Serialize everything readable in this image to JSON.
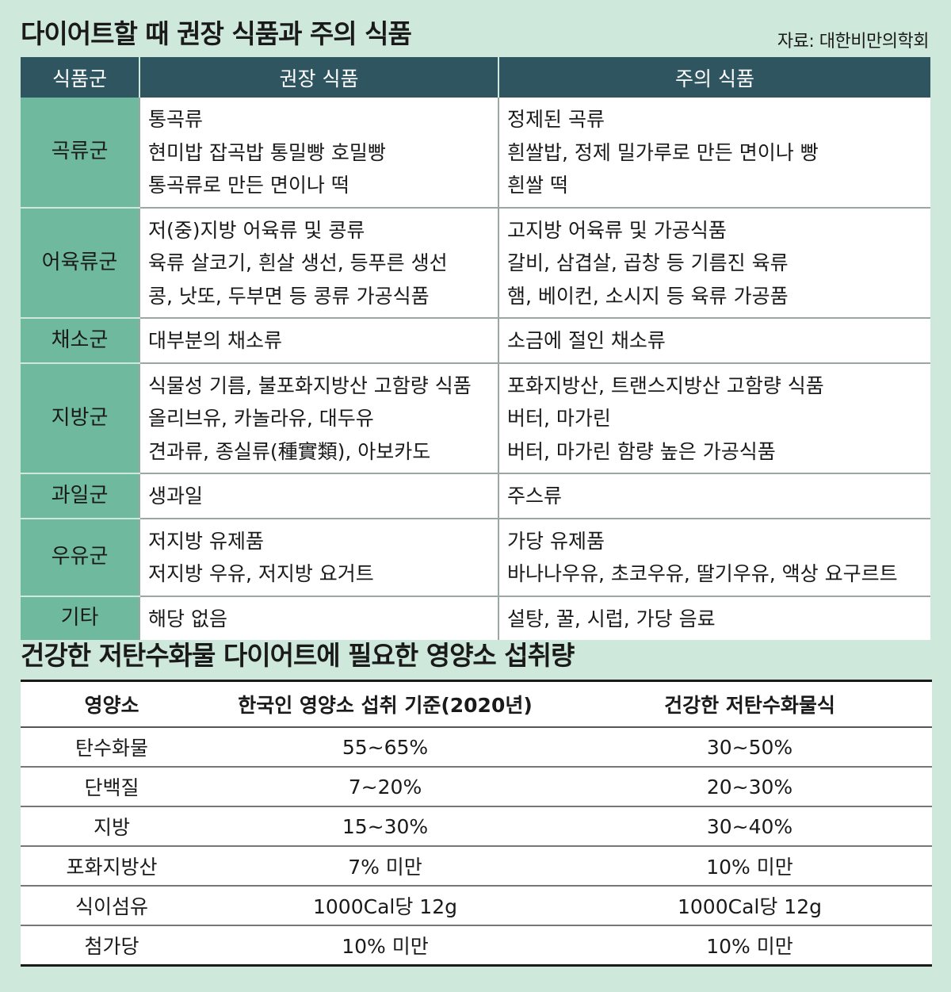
{
  "title1": "다이어트할 때 권장 식품과 주의 식품",
  "source": "자료: 대한비만의학회",
  "foods": {
    "headers": [
      "식품군",
      "권장 식품",
      "주의 식품"
    ],
    "rows": [
      {
        "group": "곡류군",
        "recommended": [
          "통곡류",
          "현미밥 잡곡밥 통밀빵 호밀빵",
          "통곡류로 만든 면이나 떡"
        ],
        "caution": [
          "정제된 곡류",
          "흰쌀밥, 정제 밀가루로 만든 면이나 빵",
          "흰쌀 떡"
        ]
      },
      {
        "group": "어육류군",
        "recommended": [
          "저(중)지방 어육류 및 콩류",
          "육류 살코기, 흰살 생선, 등푸른 생선",
          "콩, 낫또, 두부면 등 콩류 가공식품"
        ],
        "caution": [
          "고지방 어육류 및 가공식품",
          "갈비, 삼겹살, 곱창 등 기름진 육류",
          "햄, 베이컨, 소시지 등 육류 가공품"
        ]
      },
      {
        "group": "채소군",
        "recommended": [
          "대부분의 채소류"
        ],
        "caution": [
          "소금에 절인 채소류"
        ]
      },
      {
        "group": "지방군",
        "recommended": [
          "식물성 기름, 불포화지방산 고함량 식품",
          "올리브유, 카놀라유, 대두유",
          "견과류, 종실류(種實類), 아보카도"
        ],
        "caution": [
          "포화지방산, 트랜스지방산 고함량 식품",
          "버터, 마가린",
          "버터, 마가린 함량 높은 가공식품"
        ]
      },
      {
        "group": "과일군",
        "recommended": [
          "생과일"
        ],
        "caution": [
          "주스류"
        ]
      },
      {
        "group": "우유군",
        "recommended": [
          "저지방 유제품",
          "저지방 우유, 저지방 요거트"
        ],
        "caution": [
          "가당 유제품",
          "바나나우유, 초코우유, 딸기우유, 액상 요구르트"
        ]
      },
      {
        "group": "기타",
        "recommended": [
          "해당 없음"
        ],
        "caution": [
          "설탕, 꿀, 시럽, 가당 음료"
        ]
      }
    ]
  },
  "title2": "건강한 저탄수화물 다이어트에 필요한 영양소 섭취량",
  "nutrients": {
    "headers": [
      "영양소",
      "한국인 영양소 섭취 기준(2020년)",
      "건강한 저탄수화물식"
    ],
    "rows": [
      [
        "탄수화물",
        "55~65%",
        "30~50%"
      ],
      [
        "단백질",
        "7~20%",
        "20~30%"
      ],
      [
        "지방",
        "15~30%",
        "30~40%"
      ],
      [
        "포화지방산",
        "7% 미만",
        "10% 미만"
      ],
      [
        "식이섬유",
        "1000Cal당 12g",
        "1000Cal당 12g"
      ],
      [
        "첨가당",
        "10% 미만",
        "10% 미만"
      ]
    ]
  },
  "colors": {
    "background": "#cfe8dc",
    "header": "#2f5561",
    "group_cell": "#6fba9f"
  }
}
